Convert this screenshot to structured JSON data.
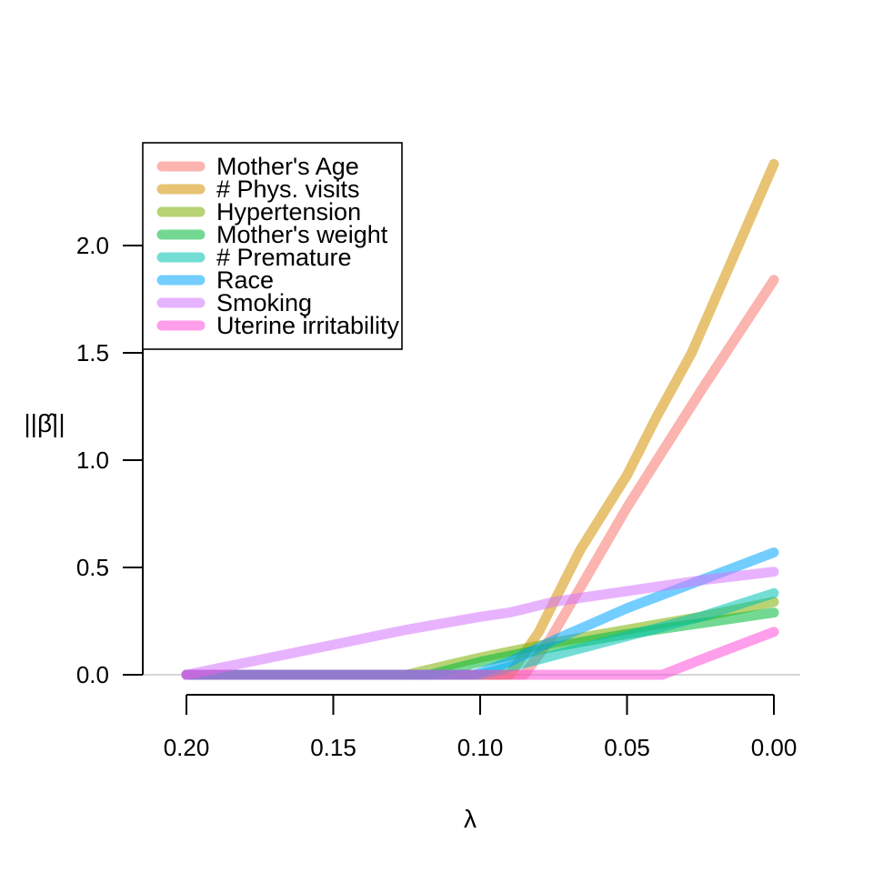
{
  "chart_data": {
    "type": "line",
    "title": "",
    "xlabel": "λ",
    "ylabel": "||β̂||",
    "xlim": [
      0.21,
      0.0
    ],
    "ylim": [
      0.0,
      2.4
    ],
    "x_reversed": true,
    "xticks": [
      0.2,
      0.15,
      0.1,
      0.05,
      0.0
    ],
    "xtick_labels": [
      "0.20",
      "0.15",
      "0.10",
      "0.05",
      "0.00"
    ],
    "yticks": [
      0.0,
      0.5,
      1.0,
      1.5,
      2.0
    ],
    "ytick_labels": [
      "0.0",
      "0.5",
      "1.0",
      "1.5",
      "2.0"
    ],
    "legend_position": "top-left",
    "zero_line": true,
    "series": [
      {
        "name": "Mother's Age",
        "color": "#F8766D",
        "points": [
          [
            0.2,
            0.0
          ],
          [
            0.085,
            0.0
          ],
          [
            0.076,
            0.17
          ],
          [
            0.064,
            0.45
          ],
          [
            0.05,
            0.78
          ],
          [
            0.025,
            1.32
          ],
          [
            0.0,
            1.84
          ]
        ]
      },
      {
        "name": "# Phys. visits",
        "color": "#D39200",
        "points": [
          [
            0.2,
            0.0
          ],
          [
            0.09,
            0.0
          ],
          [
            0.08,
            0.2
          ],
          [
            0.066,
            0.58
          ],
          [
            0.05,
            0.93
          ],
          [
            0.04,
            1.2
          ],
          [
            0.028,
            1.5
          ],
          [
            0.0,
            2.38
          ]
        ]
      },
      {
        "name": "Hypertension",
        "color": "#7CAE00",
        "points": [
          [
            0.2,
            0.0
          ],
          [
            0.125,
            0.0
          ],
          [
            0.1,
            0.08
          ],
          [
            0.075,
            0.15
          ],
          [
            0.05,
            0.21
          ],
          [
            0.025,
            0.27
          ],
          [
            0.0,
            0.34
          ]
        ]
      },
      {
        "name": "Mother's weight",
        "color": "#00BA38",
        "points": [
          [
            0.2,
            0.0
          ],
          [
            0.117,
            0.0
          ],
          [
            0.1,
            0.06
          ],
          [
            0.075,
            0.13
          ],
          [
            0.05,
            0.19
          ],
          [
            0.025,
            0.24
          ],
          [
            0.0,
            0.29
          ]
        ]
      },
      {
        "name": "# Premature",
        "color": "#00C1B2",
        "points": [
          [
            0.2,
            0.0
          ],
          [
            0.1,
            0.0
          ],
          [
            0.075,
            0.09
          ],
          [
            0.05,
            0.18
          ],
          [
            0.025,
            0.27
          ],
          [
            0.0,
            0.38
          ]
        ]
      },
      {
        "name": "Race",
        "color": "#00A5FF",
        "points": [
          [
            0.2,
            0.0
          ],
          [
            0.102,
            0.0
          ],
          [
            0.09,
            0.06
          ],
          [
            0.075,
            0.16
          ],
          [
            0.05,
            0.31
          ],
          [
            0.025,
            0.44
          ],
          [
            0.0,
            0.57
          ]
        ]
      },
      {
        "name": "Smoking",
        "color": "#D575FE",
        "points": [
          [
            0.2,
            0.0
          ],
          [
            0.175,
            0.07
          ],
          [
            0.15,
            0.14
          ],
          [
            0.125,
            0.21
          ],
          [
            0.1,
            0.27
          ],
          [
            0.09,
            0.29
          ],
          [
            0.075,
            0.34
          ],
          [
            0.05,
            0.39
          ],
          [
            0.025,
            0.44
          ],
          [
            0.0,
            0.48
          ]
        ]
      },
      {
        "name": "Uterine irritability",
        "color": "#FF4FD8",
        "points": [
          [
            0.2,
            0.0
          ],
          [
            0.038,
            0.0
          ],
          [
            0.025,
            0.07
          ],
          [
            0.0,
            0.2
          ]
        ]
      }
    ]
  }
}
